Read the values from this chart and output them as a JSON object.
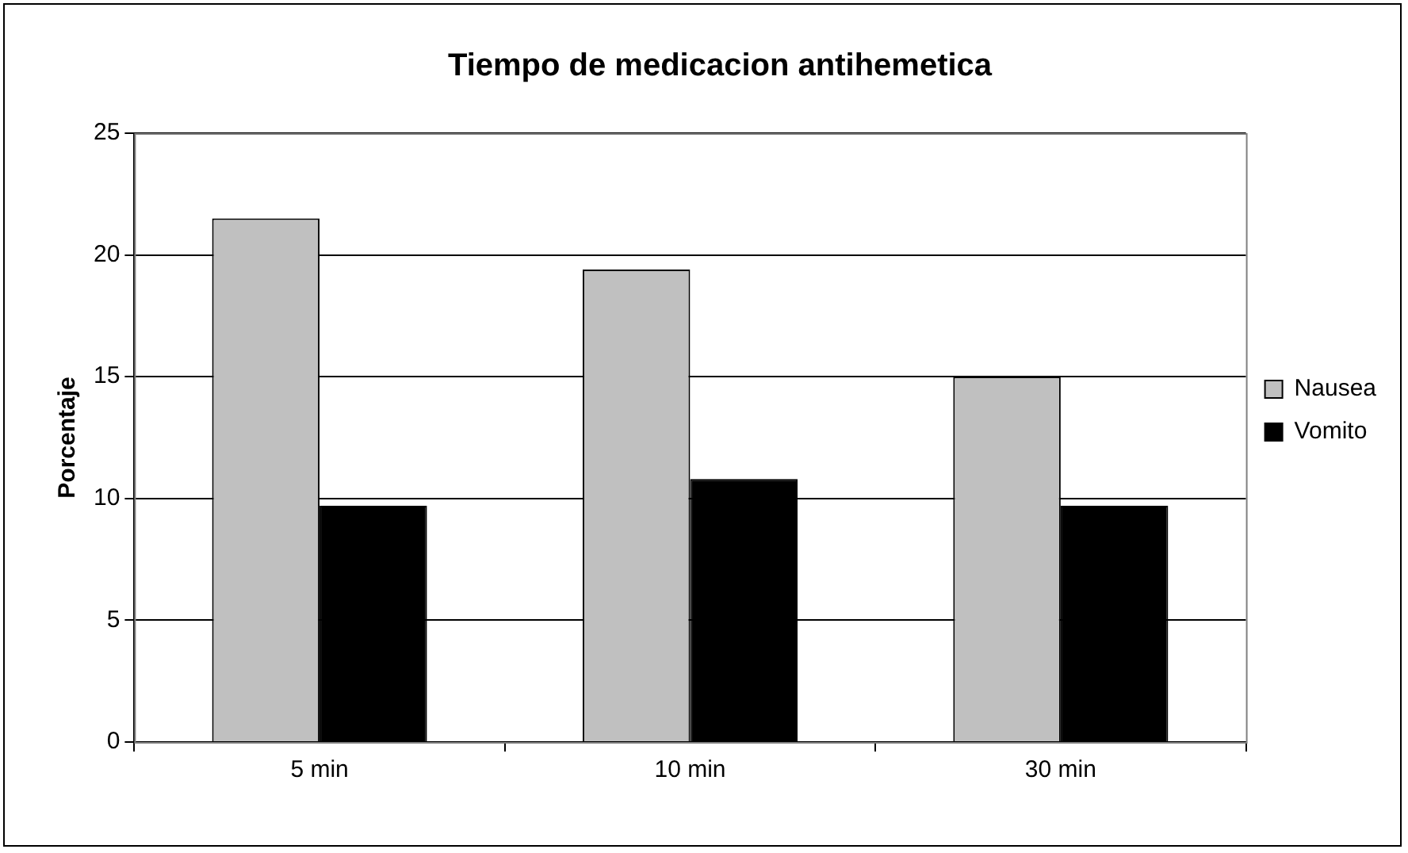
{
  "chart_data": {
    "type": "bar",
    "title": "Tiempo de medicacion antihemetica",
    "ylabel": "Porcentaje",
    "categories": [
      "5 min",
      "10 min",
      "30 min"
    ],
    "series": [
      {
        "name": "Nausea",
        "color": "#c0c0c0",
        "values": [
          21.5,
          19.4,
          15.0
        ]
      },
      {
        "name": "Vomito",
        "color": "#000000",
        "values": [
          9.7,
          10.8,
          9.7
        ]
      }
    ],
    "ylim": [
      0,
      25
    ],
    "yticks": [
      0,
      5,
      10,
      15,
      20,
      25
    ],
    "grid": "y",
    "legend": "right"
  }
}
